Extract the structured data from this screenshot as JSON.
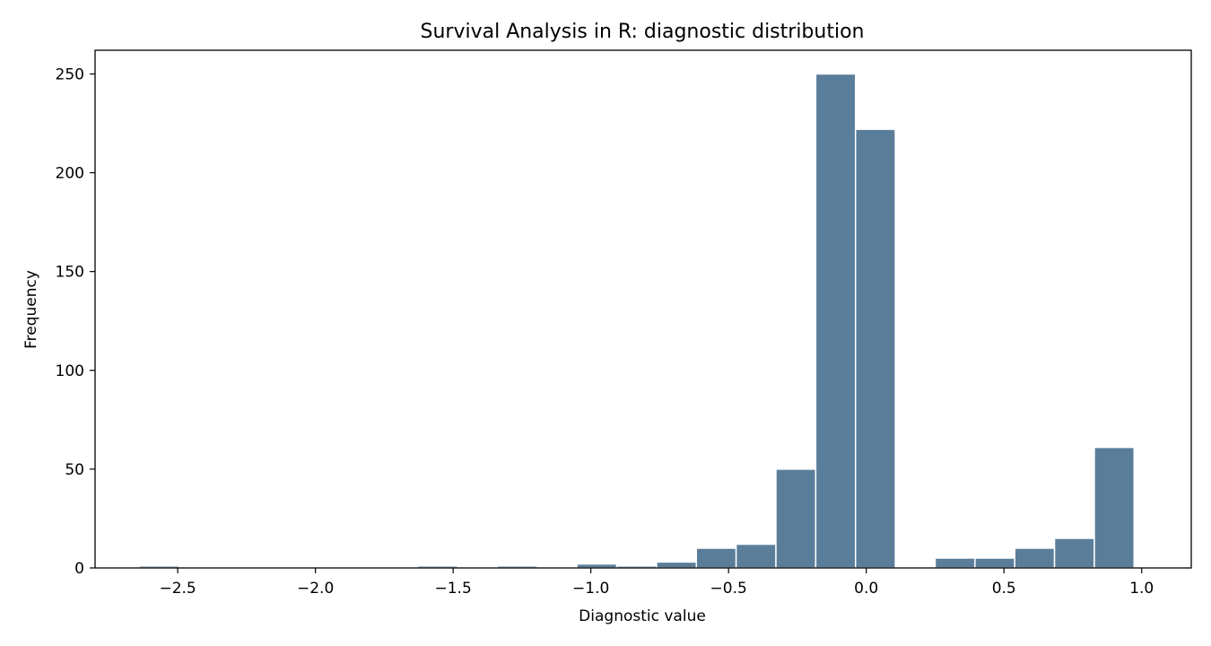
{
  "chart_data": {
    "type": "bar",
    "title": "Survival Analysis in R: diagnostic distribution",
    "xlabel": "Diagnostic value",
    "ylabel": "Frequency",
    "xlim": [
      -2.8,
      1.18
    ],
    "ylim": [
      0,
      262
    ],
    "bar_color": "#5a7d9a",
    "bin_width": 0.1445,
    "bins": [
      {
        "x0": -2.64,
        "count": 1
      },
      {
        "x0": -2.4955,
        "count": 0
      },
      {
        "x0": -2.351,
        "count": 0
      },
      {
        "x0": -2.2065,
        "count": 0
      },
      {
        "x0": -2.062,
        "count": 0
      },
      {
        "x0": -1.9175,
        "count": 0
      },
      {
        "x0": -1.773,
        "count": 0
      },
      {
        "x0": -1.6285,
        "count": 1
      },
      {
        "x0": -1.484,
        "count": 0
      },
      {
        "x0": -1.3395,
        "count": 1
      },
      {
        "x0": -1.195,
        "count": 0
      },
      {
        "x0": -1.0505,
        "count": 2
      },
      {
        "x0": -0.906,
        "count": 1
      },
      {
        "x0": -0.7615,
        "count": 3
      },
      {
        "x0": -0.617,
        "count": 10
      },
      {
        "x0": -0.4725,
        "count": 12
      },
      {
        "x0": -0.328,
        "count": 50
      },
      {
        "x0": -0.1835,
        "count": 250
      },
      {
        "x0": -0.039,
        "count": 222
      },
      {
        "x0": 0.1055,
        "count": 0
      },
      {
        "x0": 0.25,
        "count": 5
      },
      {
        "x0": 0.3945,
        "count": 5
      },
      {
        "x0": 0.539,
        "count": 10
      },
      {
        "x0": 0.6835,
        "count": 15
      },
      {
        "x0": 0.828,
        "count": 61
      }
    ],
    "xticks": [
      -2.5,
      -2.0,
      -1.5,
      -1.0,
      -0.5,
      0.0,
      0.5,
      1.0
    ],
    "xtick_labels": [
      "−2.5",
      "−2.0",
      "−1.5",
      "−1.0",
      "−0.5",
      "0.0",
      "0.5",
      "1.0"
    ],
    "yticks": [
      0,
      50,
      100,
      150,
      200,
      250
    ],
    "ytick_labels": [
      "0",
      "50",
      "100",
      "150",
      "200",
      "250"
    ],
    "grid": false,
    "legend": "none"
  }
}
